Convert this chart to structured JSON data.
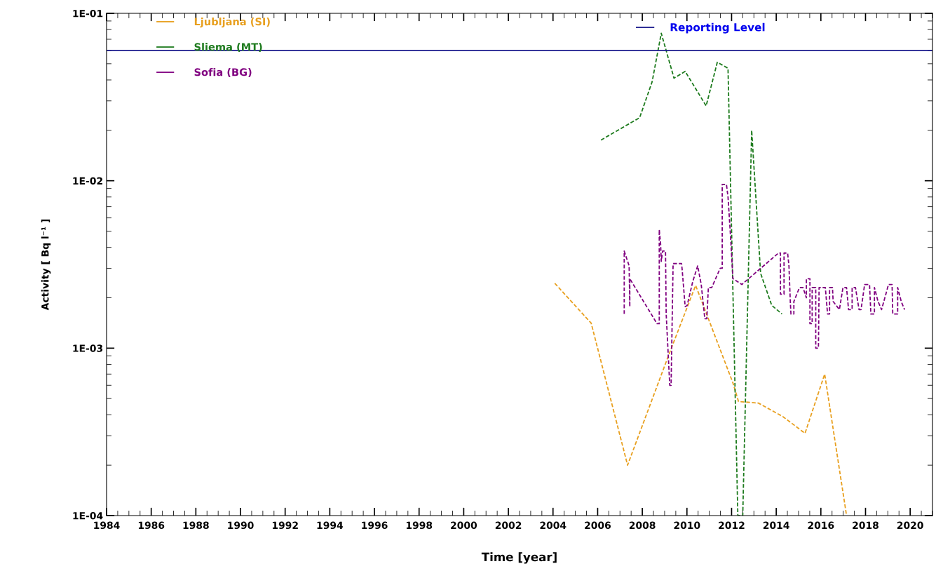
{
  "chart_data": {
    "type": "line",
    "xlabel": "Time [year]",
    "ylabel": "Activity [ Bq l⁻¹ ]",
    "log": "y",
    "xlim": [
      1984,
      2021
    ],
    "xticks": [
      1984,
      1986,
      1988,
      1990,
      1992,
      1994,
      1996,
      1998,
      2000,
      2002,
      2004,
      2006,
      2008,
      2010,
      2012,
      2014,
      2016,
      2018,
      2020
    ],
    "ylim": [
      0.0001,
      0.1
    ],
    "yticks": [
      {
        "value": 0.0001,
        "label": "1E-04"
      },
      {
        "value": 0.001,
        "label": "1E-03"
      },
      {
        "value": 0.01,
        "label": "1E-02"
      },
      {
        "value": 0.1,
        "label": "1E-01"
      }
    ],
    "grid": false,
    "legend": "top left",
    "line_style": "dashed",
    "marker": "none",
    "ref_lines": [
      {
        "axis": "y",
        "value": 0.06,
        "label": "Reporting Level",
        "color": "#1a1a8c"
      }
    ],
    "series": [
      {
        "name": "Ljubljana (SI)",
        "color": "#e8a020",
        "x": [
          2004.08,
          2005.71,
          2007.34,
          2009.17,
          2010.39,
          2012.06,
          2012.31,
          2013.2,
          2014.3,
          2015.29,
          2016.17,
          2017.15
        ],
        "values": [
          0.00244,
          0.00141,
          0.0002,
          0.0009,
          0.00237,
          0.00062,
          0.00048,
          0.00047,
          0.00039,
          0.00031,
          0.0007,
          0.0001
        ]
      },
      {
        "name": "Sliema (MT)",
        "color": "#1e7b1e",
        "x": [
          2006.15,
          2007.88,
          2008.44,
          2008.85,
          2009.42,
          2009.92,
          2010.86,
          2011.36,
          2011.84,
          2012.28,
          2012.5,
          2012.9,
          2013.3,
          2013.8,
          2014.26
        ],
        "values": [
          0.0175,
          0.0238,
          0.039,
          0.076,
          0.041,
          0.045,
          0.028,
          0.051,
          0.047,
          0.0001,
          0.0001,
          0.02,
          0.0028,
          0.0018,
          0.0016
        ]
      },
      {
        "name": "Sofia (BG)",
        "color": "#800080",
        "x": [
          2007.19,
          2007.19,
          2007.41,
          2007.44,
          2007.44,
          2008.66,
          2008.76,
          2008.76,
          2008.82,
          2008.85,
          2008.91,
          2009.04,
          2009.07,
          2009.23,
          2009.29,
          2009.38,
          2009.76,
          2009.79,
          2009.92,
          2010.01,
          2010.26,
          2010.48,
          2010.64,
          2010.8,
          2010.89,
          2010.96,
          2011.11,
          2011.49,
          2011.58,
          2011.58,
          2011.77,
          2011.84,
          2011.96,
          2012.06,
          2012.46,
          2013.78,
          2014.1,
          2014.19,
          2014.19,
          2014.35,
          2014.35,
          2014.51,
          2014.57,
          2014.63,
          2014.66,
          2014.79,
          2014.79,
          2015.04,
          2015.2,
          2015.35,
          2015.35,
          2015.51,
          2015.51,
          2015.61,
          2015.61,
          2015.77,
          2015.77,
          2015.89,
          2015.92,
          2016.2,
          2016.3,
          2016.39,
          2016.39,
          2016.52,
          2016.55,
          2016.83,
          2016.99,
          2017.15,
          2017.24,
          2017.4,
          2017.4,
          2017.55,
          2017.71,
          2017.8,
          2017.96,
          2018.18,
          2018.24,
          2018.4,
          2018.4,
          2018.56,
          2018.72,
          2019.03,
          2019.19,
          2019.22,
          2019.44,
          2019.44,
          2019.6,
          2019.75
        ],
        "values": [
          0.0016,
          0.0038,
          0.0031,
          0.00177,
          0.0026,
          0.0014,
          0.0014,
          0.0051,
          0.0042,
          0.0033,
          0.0038,
          0.0038,
          0.0016,
          0.0006,
          0.0006,
          0.0032,
          0.0032,
          0.0029,
          0.00177,
          0.0018,
          0.0025,
          0.0031,
          0.0024,
          0.0015,
          0.0015,
          0.0023,
          0.0023,
          0.003,
          0.003,
          0.0095,
          0.0095,
          0.008,
          0.0045,
          0.0026,
          0.0024,
          0.0034,
          0.0037,
          0.0037,
          0.0021,
          0.0021,
          0.0037,
          0.0037,
          0.0031,
          0.0019,
          0.0016,
          0.0016,
          0.0019,
          0.0023,
          0.0023,
          0.002,
          0.0026,
          0.0026,
          0.0014,
          0.0014,
          0.0023,
          0.0023,
          0.001,
          0.001,
          0.0023,
          0.0023,
          0.0016,
          0.0016,
          0.0023,
          0.0023,
          0.0019,
          0.0017,
          0.0023,
          0.0023,
          0.0017,
          0.0017,
          0.0023,
          0.0023,
          0.0017,
          0.0017,
          0.0024,
          0.0024,
          0.0016,
          0.0016,
          0.0023,
          0.0019,
          0.0017,
          0.0024,
          0.0024,
          0.0016,
          0.0016,
          0.0023,
          0.0019,
          0.0017
        ]
      }
    ]
  }
}
